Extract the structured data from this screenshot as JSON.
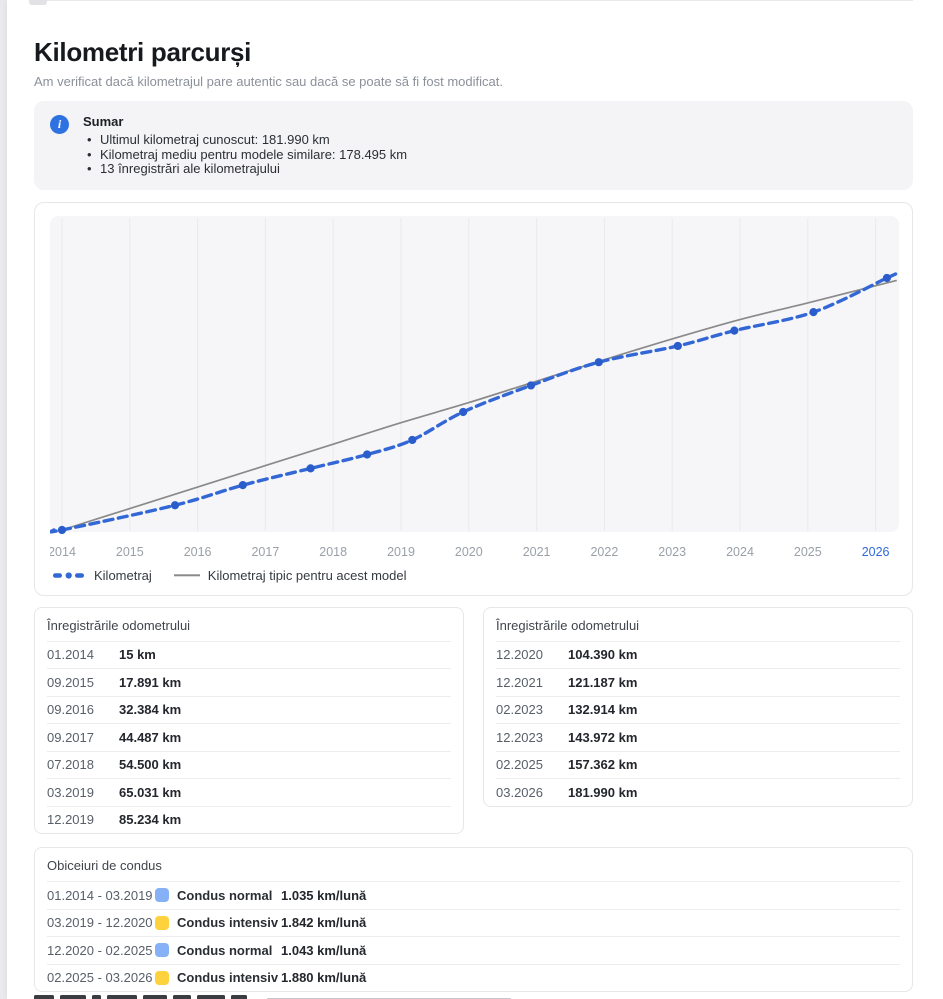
{
  "page": {
    "title": "Kilometri parcurși",
    "subtitle": "Am verificat dacă kilometrajul pare autentic sau dacă se poate să fi fost modificat."
  },
  "summary": {
    "icon": "info-icon",
    "icon_glyph": "i",
    "icon_color": "#2e72e2",
    "title": "Sumar",
    "items": [
      "Ultimul kilometraj cunoscut: 181.990 km",
      "Kilometraj mediu pentru modele similare: 178.495 km",
      "13 înregistrări ale kilometrajului"
    ]
  },
  "chart_data": {
    "type": "line",
    "x_ticks": [
      "2014",
      "2015",
      "2016",
      "2017",
      "2018",
      "2019",
      "2020",
      "2021",
      "2022",
      "2023",
      "2024",
      "2025",
      "2026"
    ],
    "highlight_tick": "2026",
    "tick_color": "#9aa0a8",
    "highlight_tick_color": "#2e6bd8",
    "plot_bg": "#f6f6f8",
    "grid_color": "#eaeaed",
    "grid": "vertical",
    "ylim": [
      0,
      226000
    ],
    "series": [
      {
        "name": "Kilometraj",
        "color": "#3367d6",
        "dot_color": "#2a5dcb",
        "style": "dashed",
        "points": [
          {
            "date": "01.2014",
            "km": 15
          },
          {
            "date": "09.2015",
            "km": 17891
          },
          {
            "date": "09.2016",
            "km": 32384
          },
          {
            "date": "09.2017",
            "km": 44487
          },
          {
            "date": "07.2018",
            "km": 54500
          },
          {
            "date": "03.2019",
            "km": 65031
          },
          {
            "date": "12.2019",
            "km": 85234
          },
          {
            "date": "12.2020",
            "km": 104390
          },
          {
            "date": "12.2021",
            "km": 121187
          },
          {
            "date": "02.2023",
            "km": 132914
          },
          {
            "date": "12.2023",
            "km": 143972
          },
          {
            "date": "02.2025",
            "km": 157362
          },
          {
            "date": "03.2026",
            "km": 181990
          }
        ]
      },
      {
        "name": "Kilometraj tipic pentru acest model",
        "color": "#8a8a8a",
        "style": "solid",
        "points": [
          {
            "year": 2014.0,
            "km": 0
          },
          {
            "year": 2015.0,
            "km": 15500
          },
          {
            "year": 2016.0,
            "km": 31000
          },
          {
            "year": 2017.0,
            "km": 46500
          },
          {
            "year": 2018.0,
            "km": 62000
          },
          {
            "year": 2019.0,
            "km": 77500
          },
          {
            "year": 2020.0,
            "km": 92000
          },
          {
            "year": 2021.0,
            "km": 107500
          },
          {
            "year": 2022.0,
            "km": 123000
          },
          {
            "year": 2023.0,
            "km": 138000
          },
          {
            "year": 2024.0,
            "km": 152000
          },
          {
            "year": 2025.0,
            "km": 164000
          },
          {
            "year": 2026.17,
            "km": 178495
          }
        ]
      }
    ]
  },
  "odometer_tables": [
    {
      "header": "Înregistrările odometrului",
      "rows": [
        [
          "01.2014",
          "15 km"
        ],
        [
          "09.2015",
          "17.891 km"
        ],
        [
          "09.2016",
          "32.384 km"
        ],
        [
          "09.2017",
          "44.487 km"
        ],
        [
          "07.2018",
          "54.500 km"
        ],
        [
          "03.2019",
          "65.031 km"
        ],
        [
          "12.2019",
          "85.234 km"
        ]
      ]
    },
    {
      "header": "Înregistrările odometrului",
      "rows": [
        [
          "12.2020",
          "104.390 km"
        ],
        [
          "12.2021",
          "121.187 km"
        ],
        [
          "02.2023",
          "132.914 km"
        ],
        [
          "12.2023",
          "143.972 km"
        ],
        [
          "02.2025",
          "157.362 km"
        ],
        [
          "03.2026",
          "181.990 km"
        ]
      ]
    }
  ],
  "driving_habits": {
    "header": "Obiceiuri de condus",
    "rows": [
      {
        "period": "01.2014 - 03.2019",
        "type": "Condus normal",
        "color": "#87b1f6",
        "rate": "1.035 km/lună"
      },
      {
        "period": "03.2019 - 12.2020",
        "type": "Condus intensiv",
        "color": "#fdd23c",
        "rate": "1.842 km/lună"
      },
      {
        "period": "12.2020 - 02.2025",
        "type": "Condus normal",
        "color": "#87b1f6",
        "rate": "1.043 km/lună"
      },
      {
        "period": "02.2025 - 03.2026",
        "type": "Condus intensiv",
        "color": "#fdd23c",
        "rate": "1.880 km/lună"
      }
    ]
  }
}
